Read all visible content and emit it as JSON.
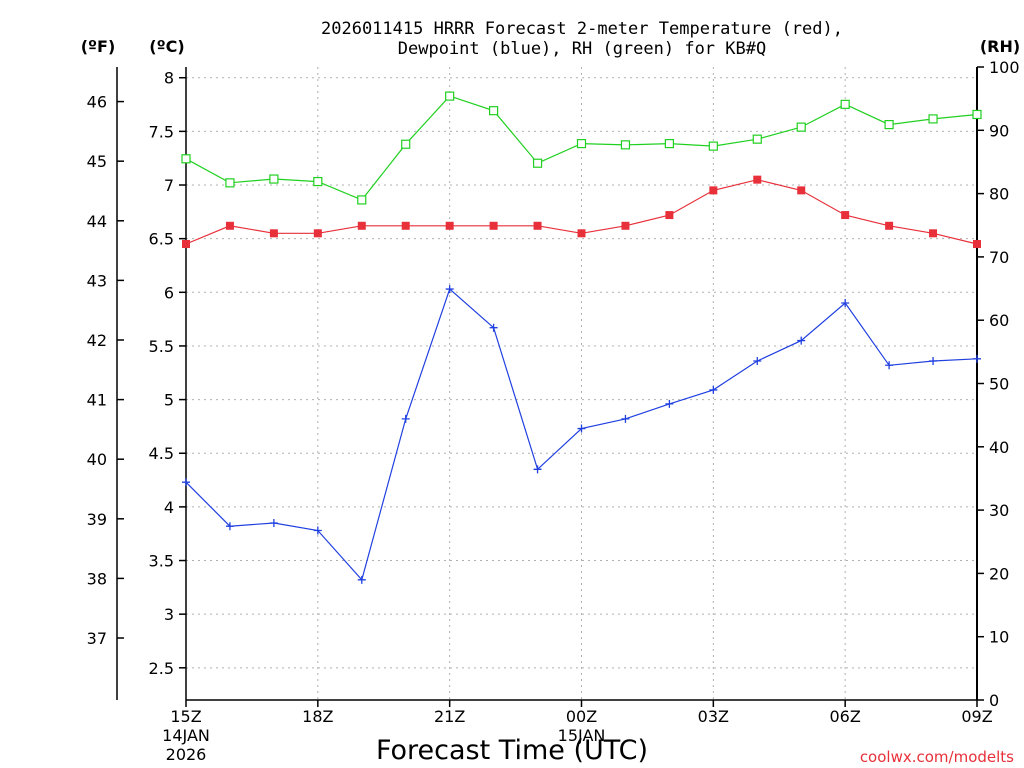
{
  "chart_data": {
    "type": "line",
    "title": "2026011415 HRRR Forecast 2-meter Temperature (red),",
    "subtitle": "Dewpoint (blue), RH (green) for KB#Q",
    "xlabel": "Forecast Time (UTC)",
    "credit": "coolwx.com/modelts",
    "units": {
      "fahrenheit": "(ºF)",
      "celsius": "(ºC)",
      "rh": "(RH)"
    },
    "x": [
      "15Z",
      "16Z",
      "17Z",
      "18Z",
      "19Z",
      "20Z",
      "21Z",
      "22Z",
      "23Z",
      "00Z",
      "01Z",
      "02Z",
      "03Z",
      "04Z",
      "05Z",
      "06Z",
      "07Z",
      "08Z",
      "09Z"
    ],
    "x_ticks": [
      {
        "label": "15Z",
        "date": "14JAN",
        "year": "2026"
      },
      {
        "label": "18Z"
      },
      {
        "label": "21Z"
      },
      {
        "label": "00Z",
        "date": "15JAN"
      },
      {
        "label": "03Z"
      },
      {
        "label": "06Z"
      },
      {
        "label": "09Z"
      }
    ],
    "left_celsius_axis": {
      "ylim": [
        2.2,
        8.1
      ],
      "ticks": [
        "2.5",
        "3",
        "3.5",
        "4",
        "4.5",
        "5",
        "5.5",
        "6",
        "6.5",
        "7",
        "7.5",
        "8"
      ]
    },
    "left_fahrenheit_axis": {
      "ticks": [
        "37",
        "38",
        "39",
        "40",
        "41",
        "42",
        "43",
        "44",
        "45",
        "46"
      ]
    },
    "right_rh_axis": {
      "ylim": [
        0,
        100
      ],
      "ticks": [
        "0",
        "10",
        "20",
        "30",
        "40",
        "50",
        "60",
        "70",
        "80",
        "90",
        "100"
      ]
    },
    "grid": true,
    "series": [
      {
        "name": "Temperature",
        "axis": "celsius",
        "color": "#e8303a",
        "marker": "filled-square",
        "values": [
          6.45,
          6.62,
          6.55,
          6.55,
          6.62,
          6.62,
          6.62,
          6.62,
          6.62,
          6.55,
          6.62,
          6.72,
          6.95,
          7.05,
          6.95,
          6.72,
          6.62,
          6.55,
          6.45
        ]
      },
      {
        "name": "Dewpoint",
        "axis": "celsius",
        "color": "#2040e0",
        "marker": "plus",
        "values": [
          4.23,
          3.82,
          3.85,
          3.78,
          3.32,
          4.82,
          6.03,
          5.67,
          4.35,
          4.73,
          4.82,
          4.96,
          5.09,
          5.36,
          5.55,
          5.9,
          5.32,
          5.36,
          5.38
        ]
      },
      {
        "name": "RH",
        "axis": "rh",
        "color": "#20d020",
        "marker": "open-square",
        "values": [
          85.5,
          81.7,
          82.3,
          81.9,
          79.0,
          87.8,
          95.4,
          93.1,
          84.8,
          87.9,
          87.7,
          87.9,
          87.5,
          88.6,
          90.5,
          94.1,
          90.9,
          91.8,
          92.5
        ]
      }
    ]
  }
}
